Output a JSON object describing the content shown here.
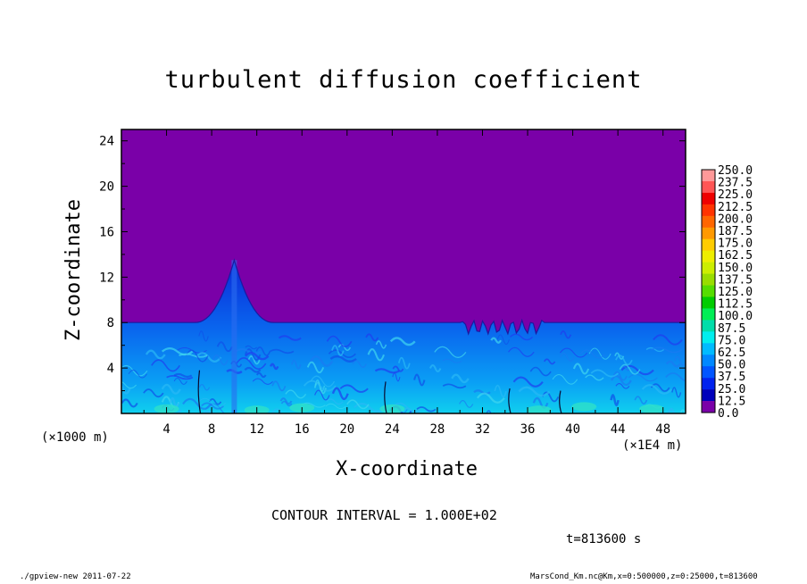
{
  "chart_data": {
    "type": "heatmap",
    "title": "turbulent diffusion coefficient",
    "xlabel": "X-coordinate",
    "ylabel": "Z-coordinate",
    "x_unit_left": "(×1000 m)",
    "x_unit_right": "(×1E4 m)",
    "xlim": [
      0,
      50
    ],
    "ylim": [
      0,
      25
    ],
    "x_ticks": [
      "4",
      "8",
      "12",
      "16",
      "20",
      "24",
      "28",
      "32",
      "36",
      "40",
      "44",
      "48"
    ],
    "y_ticks": [
      "4",
      "8",
      "12",
      "16",
      "20",
      "24"
    ],
    "x_tick_values": [
      4,
      8,
      12,
      16,
      20,
      24,
      28,
      32,
      36,
      40,
      44,
      48
    ],
    "y_tick_values": [
      4,
      8,
      12,
      16,
      20,
      24
    ],
    "colorbar": {
      "levels": [
        "250.0",
        "237.5",
        "225.0",
        "212.5",
        "200.0",
        "187.5",
        "175.0",
        "162.5",
        "150.0",
        "137.5",
        "125.0",
        "112.5",
        "100.0",
        "87.5",
        "75.0",
        "62.5",
        "50.0",
        "37.5",
        "25.0",
        "12.5",
        "0.0"
      ],
      "colors": [
        "#ff9999",
        "#ff5555",
        "#ee0000",
        "#ff3300",
        "#ff6600",
        "#ff9900",
        "#ffcc00",
        "#eeee00",
        "#ccee00",
        "#99dd00",
        "#55dd00",
        "#00cc00",
        "#00ee55",
        "#00ddaa",
        "#00eeee",
        "#00bbff",
        "#0088ff",
        "#0055ff",
        "#0022ee",
        "#0000bb",
        "#7a00a8"
      ]
    },
    "background_color": "#7a00a8",
    "boundary_layer_top": 8,
    "plume": {
      "x": 10,
      "peak_z": 13.5
    },
    "contour_interval": "CONTOUR INTERVAL = 1.000E+02",
    "time": "t=813600 s"
  },
  "footer": {
    "left": "./gpview-new  2011-07-22",
    "right": "MarsCond_Km.nc@Km,x=0:500000,z=0:25000,t=813600"
  }
}
